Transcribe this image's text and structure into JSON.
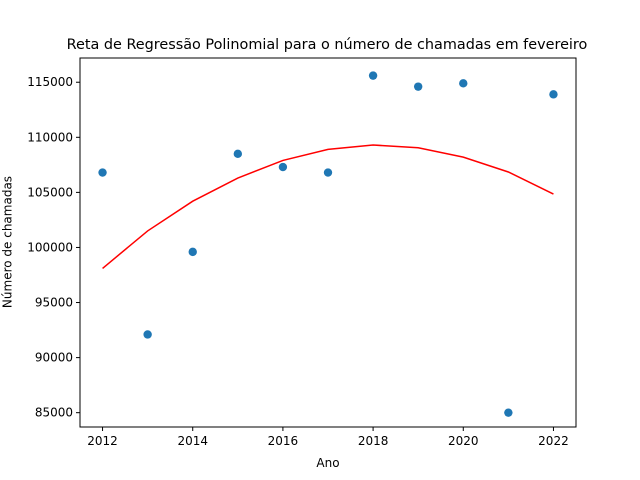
{
  "chart_data": {
    "type": "scatter",
    "title": "Reta de Regressão Polinomial para o número de chamadas em fevereiro",
    "xlabel": "Ano",
    "ylabel": "Número de chamadas",
    "xlim": [
      2011.5,
      2022.5
    ],
    "ylim": [
      83700,
      117200
    ],
    "xticks": [
      2012,
      2014,
      2016,
      2018,
      2020,
      2022
    ],
    "yticks": [
      85000,
      90000,
      95000,
      100000,
      105000,
      110000,
      115000
    ],
    "grid": false,
    "legend": "none",
    "series": [
      {
        "kind": "scatter",
        "color": "#1f77b4",
        "x": [
          2012,
          2013,
          2014,
          2015,
          2016,
          2017,
          2018,
          2019,
          2020,
          2021,
          2022
        ],
        "y": [
          106800,
          92100,
          99600,
          108500,
          107300,
          106800,
          115600,
          114600,
          114900,
          85000,
          113900
        ]
      },
      {
        "kind": "line",
        "color": "#ff0000",
        "x": [
          2012,
          2013,
          2014,
          2015,
          2016,
          2017,
          2018,
          2019,
          2020,
          2021,
          2022
        ],
        "y": [
          98100,
          101500,
          104200,
          106300,
          107900,
          108900,
          109300,
          109050,
          108200,
          106850,
          104850
        ]
      }
    ]
  }
}
